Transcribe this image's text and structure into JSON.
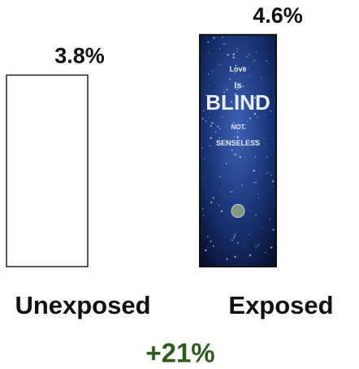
{
  "chart_data": {
    "type": "bar",
    "categories": [
      "Unexposed",
      "Exposed"
    ],
    "values": [
      3.8,
      4.6
    ],
    "value_labels": [
      "3.8%",
      "4.6%"
    ],
    "annotation": "+21%",
    "cover_texts": [
      "Love",
      "Is",
      "BLIND",
      "NOT",
      "SENSELESS"
    ]
  }
}
